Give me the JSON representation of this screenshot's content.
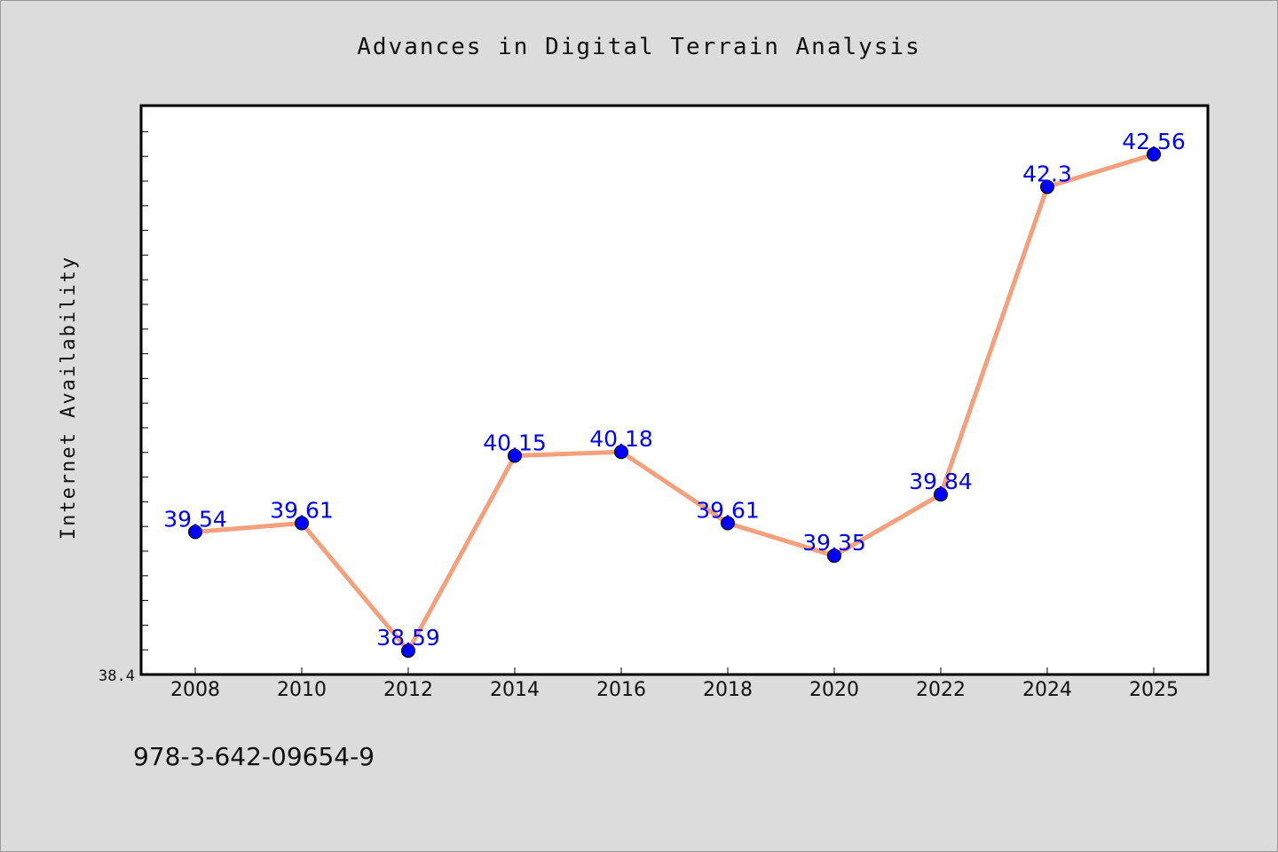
{
  "chart_data": {
    "type": "line",
    "title": "Advances in Digital Terrain Analysis",
    "xlabel": "",
    "ylabel": "Internet Availability",
    "categories": [
      "2008",
      "2010",
      "2012",
      "2014",
      "2016",
      "2018",
      "2020",
      "2022",
      "2024",
      "2025"
    ],
    "values": [
      39.54,
      39.61,
      38.59,
      40.15,
      40.18,
      39.61,
      39.35,
      39.84,
      42.3,
      42.56
    ],
    "data_labels": [
      "39.54",
      "39.61",
      "38.59",
      "40.15",
      "40.18",
      "39.61",
      "39.35",
      "39.84",
      "42.3",
      "42.56"
    ],
    "ylim": [
      38.4,
      42.95
    ],
    "y_tick_labels": [
      "38.4"
    ],
    "grid": false,
    "colors": {
      "line": "#f4a07c",
      "marker": "#0000ff",
      "label": "#0000ff",
      "plot_bg": "#ffffff",
      "page_bg": "#dcdcdc"
    }
  },
  "footer": {
    "isbn": "978-3-642-09654-9"
  }
}
